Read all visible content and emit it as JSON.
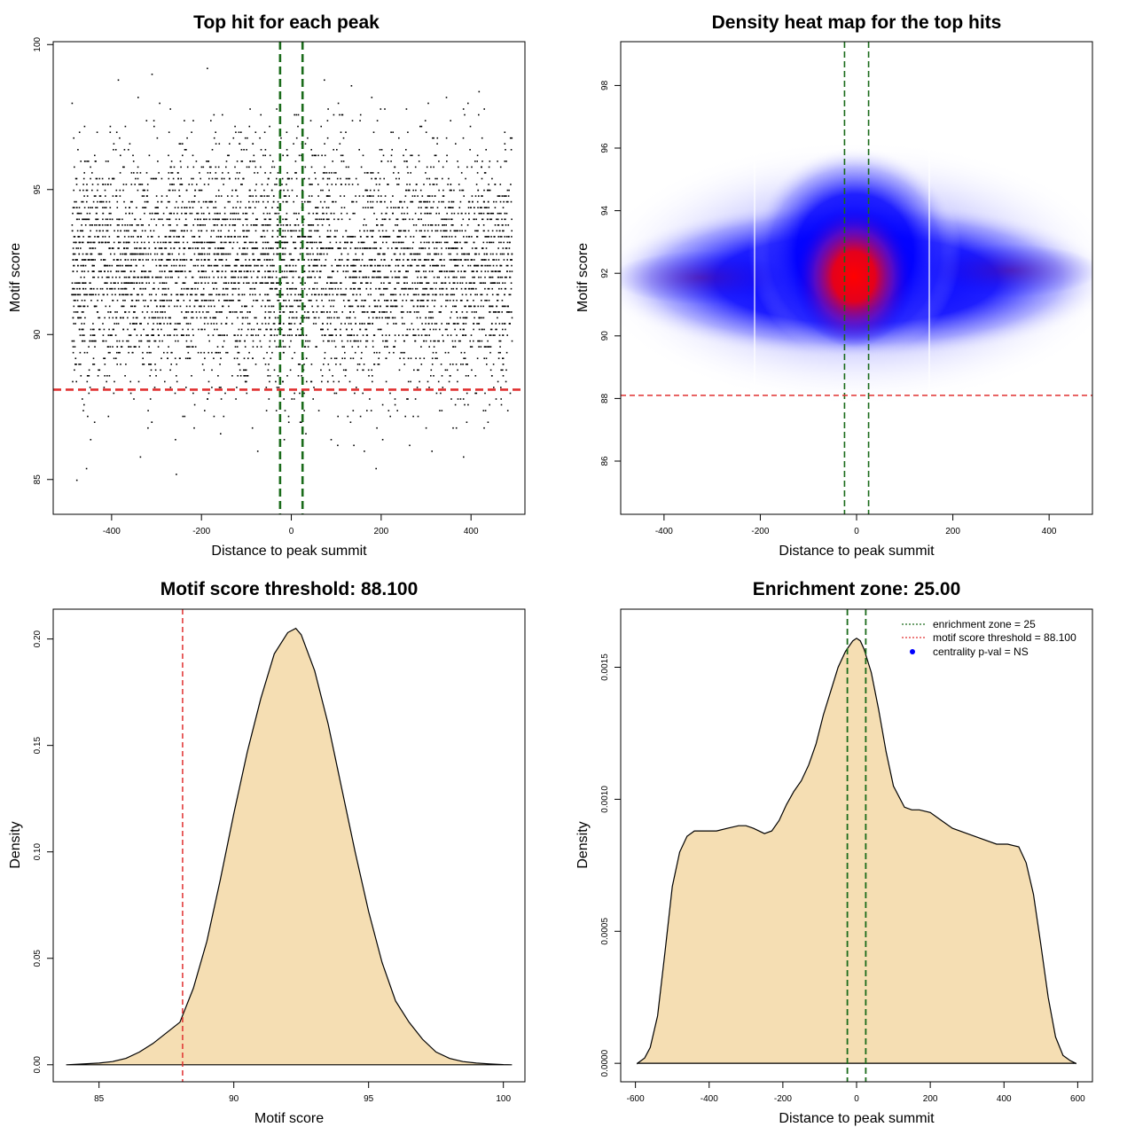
{
  "colors": {
    "green_line": "#1a6b1a",
    "red_line": "#e03030",
    "fill": "#f5deb3",
    "heat_low": "#0000ff",
    "heat_high": "#ff0000"
  },
  "chart_data": [
    {
      "type": "scatter",
      "title": "Top hit for each peak",
      "xlabel": "Distance to peak summit",
      "ylabel": "Motif score",
      "xlim": [
        -530,
        520
      ],
      "ylim": [
        83.8,
        100.1
      ],
      "xticks": [
        -400,
        -200,
        0,
        200,
        400
      ],
      "yticks": [
        85,
        90,
        95,
        100
      ],
      "x_range_points": [
        -490,
        490
      ],
      "score_distribution": {
        "mean": 92.3,
        "sd": 2.1,
        "min": 84.4,
        "max": 99.5
      },
      "vlines": [
        -25,
        25
      ],
      "hline": 88.1
    },
    {
      "type": "heatmap",
      "title": "Density heat map for the top hits",
      "xlabel": "Distance to peak summit",
      "ylabel": "Motif score",
      "xlim": [
        -490,
        490
      ],
      "ylim": [
        84.3,
        99.4
      ],
      "xticks": [
        -400,
        -200,
        0,
        200,
        400
      ],
      "yticks": [
        86,
        88,
        90,
        92,
        94,
        96,
        98
      ],
      "peak": {
        "x": 0,
        "y": 92
      },
      "vlines": [
        -25,
        25
      ],
      "hline": 88.1
    },
    {
      "type": "area",
      "title": "Motif score threshold: 88.100",
      "xlabel": "Motif score",
      "ylabel": "Density",
      "xlim": [
        83.3,
        100.8
      ],
      "ylim": [
        -0.008,
        0.214
      ],
      "xticks": [
        85,
        90,
        95,
        100
      ],
      "yticks": [
        "0.00",
        "0.05",
        "0.10",
        "0.15",
        "0.20"
      ],
      "x": [
        83.8,
        85,
        85.5,
        86,
        86.5,
        87,
        87.5,
        88,
        88.5,
        89,
        89.5,
        90,
        90.5,
        91,
        91.5,
        92,
        92.3,
        92.5,
        93,
        93.5,
        94,
        94.5,
        95,
        95.5,
        96,
        96.5,
        97,
        97.5,
        98,
        98.5,
        99,
        99.5,
        100,
        100.3
      ],
      "y": [
        0.0,
        0.0008,
        0.0015,
        0.003,
        0.006,
        0.01,
        0.015,
        0.02,
        0.036,
        0.058,
        0.087,
        0.118,
        0.147,
        0.172,
        0.193,
        0.203,
        0.205,
        0.202,
        0.185,
        0.16,
        0.13,
        0.1,
        0.072,
        0.048,
        0.03,
        0.02,
        0.012,
        0.006,
        0.003,
        0.0015,
        0.0008,
        0.0004,
        0.0001,
        0.0
      ],
      "vline": 88.1
    },
    {
      "type": "area",
      "title": "Enrichment zone: 25.00",
      "xlabel": "Distance to peak summit",
      "ylabel": "Density",
      "xlim": [
        -640,
        640
      ],
      "ylim": [
        -7e-05,
        0.00172
      ],
      "xticks": [
        -600,
        -400,
        -200,
        0,
        200,
        400,
        600
      ],
      "yticks": [
        "0.0000",
        "0.0005",
        "0.0010",
        "0.0015"
      ],
      "x": [
        -595,
        -575,
        -560,
        -540,
        -520,
        -500,
        -480,
        -460,
        -440,
        -420,
        -400,
        -380,
        -350,
        -320,
        -300,
        -280,
        -250,
        -230,
        -210,
        -190,
        -170,
        -150,
        -130,
        -110,
        -90,
        -70,
        -50,
        -30,
        -10,
        0,
        10,
        20,
        40,
        60,
        80,
        100,
        130,
        150,
        170,
        200,
        230,
        260,
        300,
        340,
        380,
        410,
        440,
        460,
        480,
        500,
        520,
        540,
        560,
        580,
        595
      ],
      "y": [
        0.0,
        2e-05,
        6e-05,
        0.00018,
        0.00042,
        0.00067,
        0.0008,
        0.00086,
        0.00088,
        0.00088,
        0.00088,
        0.00088,
        0.00089,
        0.0009,
        0.0009,
        0.00089,
        0.00087,
        0.00088,
        0.00092,
        0.00098,
        0.00103,
        0.00107,
        0.00113,
        0.00121,
        0.00132,
        0.00141,
        0.0015,
        0.00156,
        0.0016,
        0.00161,
        0.0016,
        0.00157,
        0.00148,
        0.00134,
        0.00118,
        0.00105,
        0.00097,
        0.00096,
        0.00096,
        0.00095,
        0.00092,
        0.00089,
        0.00087,
        0.00085,
        0.00083,
        0.00083,
        0.00082,
        0.00076,
        0.00064,
        0.00045,
        0.00025,
        0.0001,
        3e-05,
        1e-05,
        0.0
      ],
      "vlines": [
        -25,
        25
      ],
      "legend": {
        "position": "top-right",
        "entries": [
          {
            "label": "enrichment zone = 25",
            "kind": "line",
            "color": "#1a6b1a"
          },
          {
            "label": "motif score threshold = 88.100",
            "kind": "line",
            "color": "#e03030"
          },
          {
            "label": "centrality p-val = NS",
            "kind": "point",
            "color": "#0000ff"
          }
        ]
      }
    }
  ]
}
